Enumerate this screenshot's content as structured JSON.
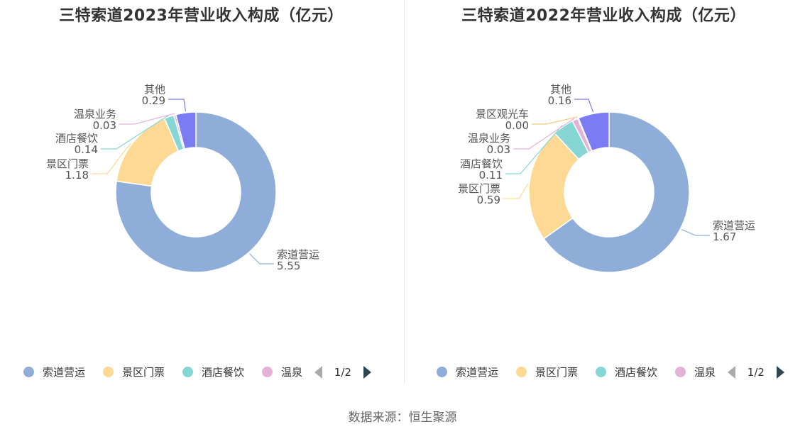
{
  "colors": {
    "索道营运": "#8eadd9",
    "景区门票": "#fdd993",
    "酒店餐饮": "#87d6d6",
    "温泉业务": "#e3b2d6",
    "景区观光车": "#fbc77f",
    "其他": "#7b7cf3"
  },
  "chart_data": [
    {
      "type": "pie",
      "title": "三特索道2023年营业收入构成（亿元）",
      "slices": [
        {
          "name": "索道营运",
          "value": 5.55,
          "value_label": "5.55"
        },
        {
          "name": "景区门票",
          "value": 1.18,
          "value_label": "1.18"
        },
        {
          "name": "酒店餐饮",
          "value": 0.14,
          "value_label": "0.14"
        },
        {
          "name": "温泉业务",
          "value": 0.03,
          "value_label": "0.03"
        },
        {
          "name": "其他",
          "value": 0.29,
          "value_label": "0.29"
        }
      ],
      "legend": {
        "items": [
          "索道营运",
          "景区门票",
          "酒店餐饮",
          "温泉"
        ],
        "page": "1/2",
        "placement": "bottom"
      }
    },
    {
      "type": "pie",
      "title": "三特索道2022年营业收入构成（亿元）",
      "slices": [
        {
          "name": "索道营运",
          "value": 1.67,
          "value_label": "1.67"
        },
        {
          "name": "景区门票",
          "value": 0.59,
          "value_label": "0.59"
        },
        {
          "name": "酒店餐饮",
          "value": 0.11,
          "value_label": "0.11"
        },
        {
          "name": "温泉业务",
          "value": 0.03,
          "value_label": "0.03"
        },
        {
          "name": "景区观光车",
          "value": 0.004,
          "value_label": "0.00"
        },
        {
          "name": "其他",
          "value": 0.16,
          "value_label": "0.16"
        }
      ],
      "legend": {
        "items": [
          "索道营运",
          "景区门票",
          "酒店餐饮",
          "温泉"
        ],
        "page": "1/2",
        "placement": "bottom"
      }
    }
  ],
  "source": "数据来源：恒生聚源"
}
